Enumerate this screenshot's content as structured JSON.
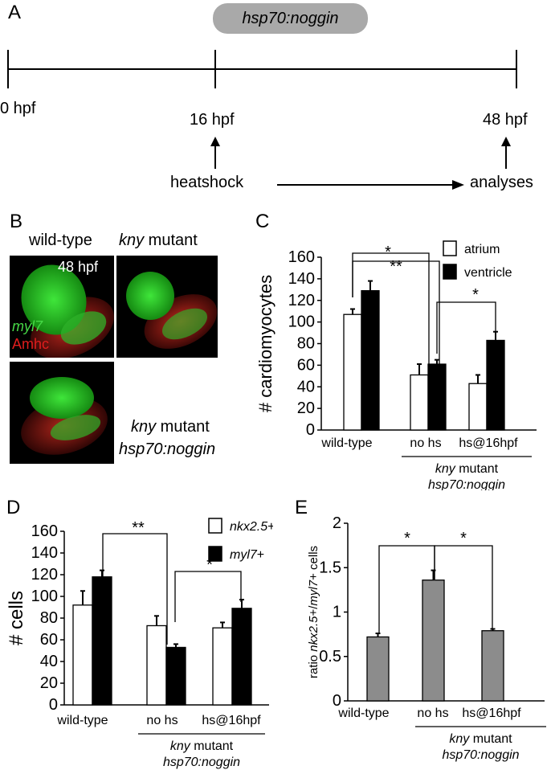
{
  "panel_a": {
    "label": "A",
    "construct": "hsp70:noggin",
    "t0": "0 hpf",
    "t16": "16 hpf",
    "t48": "48 hpf",
    "heatshock": "heatshock",
    "analyses": "analyses"
  },
  "panel_b": {
    "label": "B",
    "wt_title": "wild-type",
    "kny_italic": "kny",
    "kny_rest": " mutant",
    "stage": "48 hpf",
    "marker_green": "myl7",
    "marker_red": "Amhc",
    "bottom_line1_italic": "kny",
    "bottom_line1_rest": " mutant",
    "bottom_line2": "hsp70:noggin"
  },
  "colors": {
    "white_bar": "#ffffff",
    "black_bar": "#000000",
    "grey_bar": "#8c8c8c",
    "pill": "#a9a9a9"
  },
  "chart_data": [
    {
      "panel": "C",
      "type": "bar",
      "ylabel": "# cardiomyocytes",
      "ylim": [
        0,
        160
      ],
      "yticks": [
        "0",
        "20",
        "40",
        "60",
        "80",
        "100",
        "120",
        "140",
        "160"
      ],
      "categories": [
        "wild-type",
        "no hs",
        "hs@16hpf"
      ],
      "group_label": {
        "italic": "kny",
        "rest": " mutant",
        "line2": "hsp70:noggin"
      },
      "series": [
        {
          "name": "atrium",
          "values": [
            107,
            51,
            43
          ],
          "errors": [
            5,
            10,
            8
          ]
        },
        {
          "name": "ventricle",
          "values": [
            129,
            61,
            83
          ],
          "errors": [
            9,
            4,
            8
          ]
        }
      ],
      "significance": [
        "*",
        "**",
        "*"
      ],
      "legend_position": "top-right"
    },
    {
      "panel": "D",
      "type": "bar",
      "ylabel": "# cells",
      "ylim": [
        0,
        160
      ],
      "yticks": [
        "0",
        "20",
        "40",
        "60",
        "80",
        "100",
        "120",
        "140",
        "160"
      ],
      "categories": [
        "wild-type",
        "no hs",
        "hs@16hpf"
      ],
      "group_label": {
        "italic": "kny",
        "rest": " mutant",
        "line2": "hsp70:noggin"
      },
      "series": [
        {
          "name": "nkx2.5+",
          "values": [
            92,
            73,
            71
          ],
          "errors": [
            13,
            9,
            5
          ]
        },
        {
          "name": "myl7+",
          "values": [
            118,
            53,
            89
          ],
          "errors": [
            6,
            3,
            8
          ]
        }
      ],
      "significance": [
        "**",
        "*"
      ],
      "legend_position": "top-right"
    },
    {
      "panel": "E",
      "type": "bar",
      "ylabel_prefix": "ratio ",
      "ylabel_italic1": "nkx2.5",
      "ylabel_mid": "+/",
      "ylabel_italic2": "myl7",
      "ylabel_suffix": "+ cells",
      "ylim": [
        0,
        2
      ],
      "yticks": [
        "0",
        "0.5",
        "1",
        "1.5",
        "2"
      ],
      "categories": [
        "wild-type",
        "no hs",
        "hs@16hpf"
      ],
      "group_label": {
        "italic": "kny",
        "rest": " mutant",
        "line2": "hsp70:noggin"
      },
      "series": [
        {
          "values": [
            0.72,
            1.36,
            0.79
          ],
          "errors": [
            0.04,
            0.11,
            0.02
          ]
        }
      ],
      "significance": [
        "*",
        "*"
      ]
    }
  ]
}
